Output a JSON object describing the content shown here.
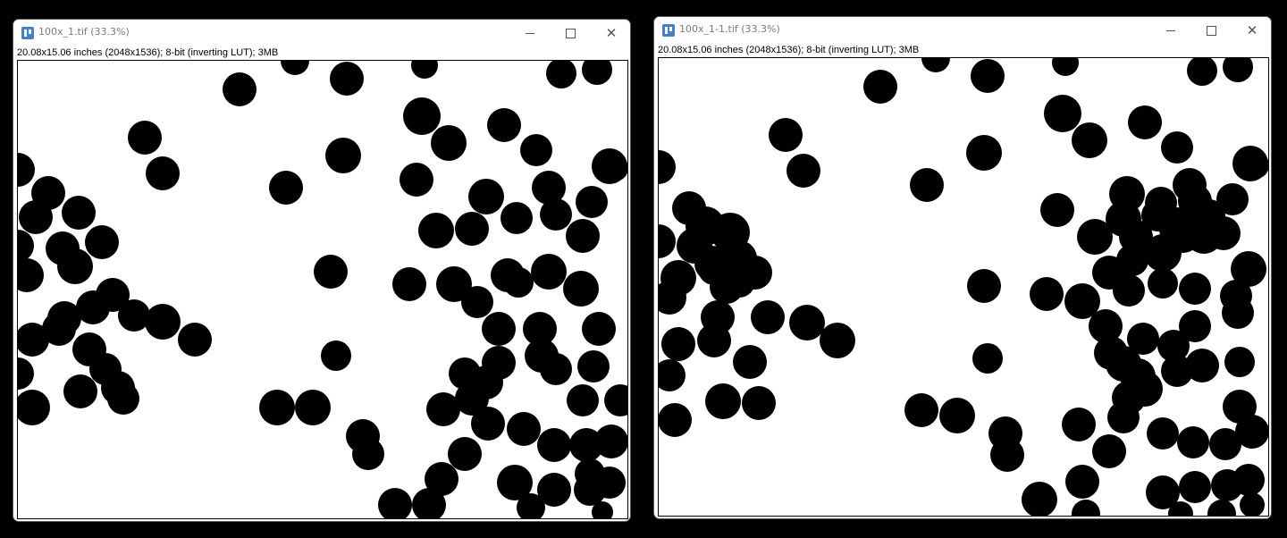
{
  "windows": [
    {
      "title": "100x_1.tif (33.3%)",
      "info": "20.08x15.06 inches (2048x1536); 8-bit (inverting LUT); 3MB",
      "controls": {
        "minimize": "minimize-icon",
        "maximize": "maximize-icon",
        "close": "close-icon"
      }
    },
    {
      "title": "100x_1-1.tif (33.3%)",
      "info": "20.08x15.06 inches (2048x1536); 8-bit (inverting LUT); 3MB",
      "controls": {
        "minimize": "minimize-icon",
        "maximize": "maximize-icon",
        "close": "close-icon"
      }
    }
  ],
  "colors": {
    "background": "#000000",
    "window": "#ffffff",
    "blob": "#000000",
    "app_icon": "#4a7fc1"
  },
  "icons": {
    "app": "imagej-icon"
  }
}
